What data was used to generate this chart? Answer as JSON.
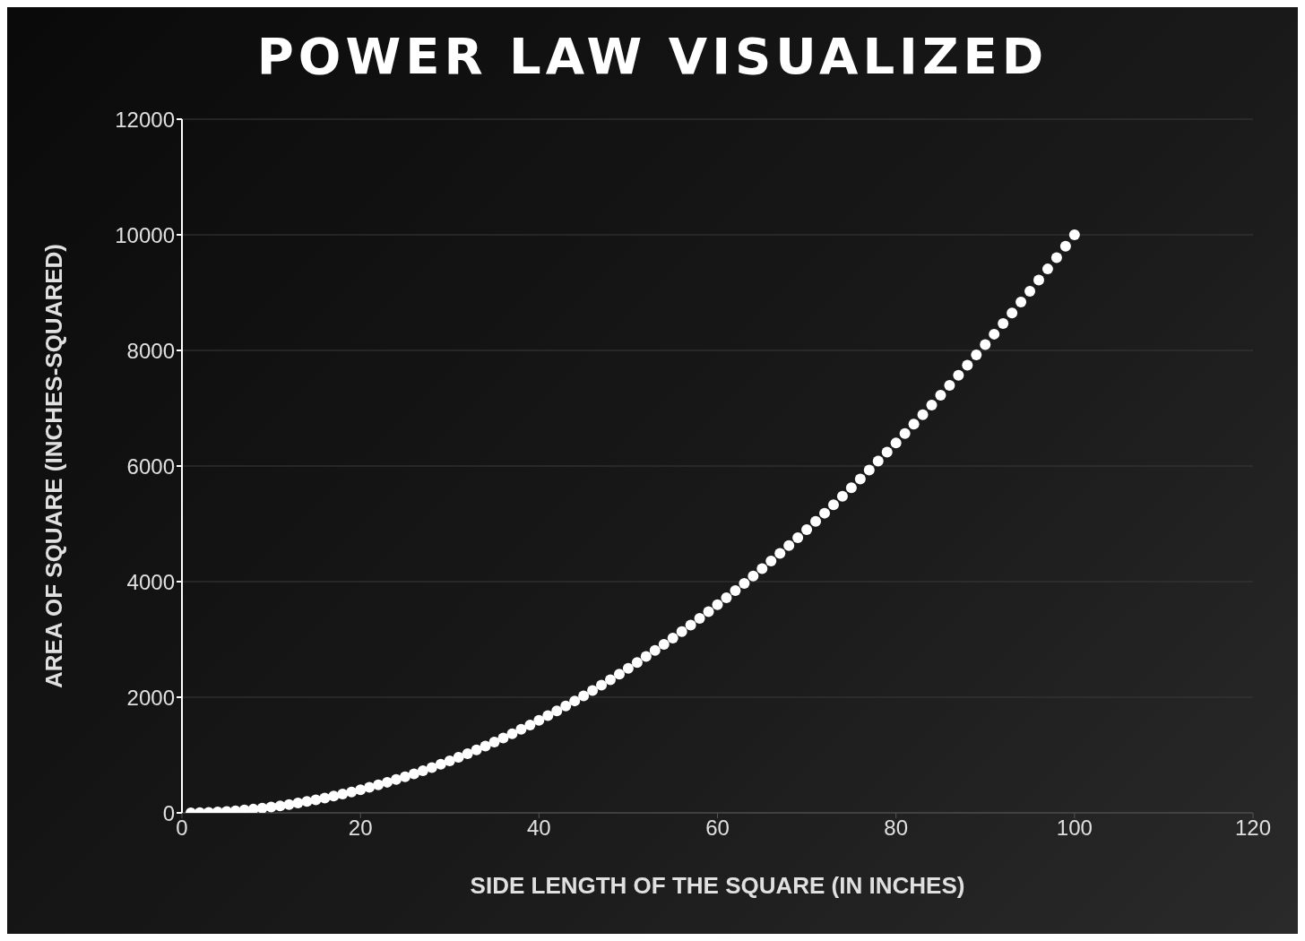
{
  "chart_data": {
    "type": "scatter",
    "title": "POWER LAW VISUALIZED",
    "xlabel": "SIDE LENGTH OF THE SQUARE (IN INCHES)",
    "ylabel": "AREA OF SQUARE (INCHES-SQUARED)",
    "x": [
      1,
      2,
      3,
      4,
      5,
      6,
      7,
      8,
      9,
      10,
      11,
      12,
      13,
      14,
      15,
      16,
      17,
      18,
      19,
      20,
      21,
      22,
      23,
      24,
      25,
      26,
      27,
      28,
      29,
      30,
      31,
      32,
      33,
      34,
      35,
      36,
      37,
      38,
      39,
      40,
      41,
      42,
      43,
      44,
      45,
      46,
      47,
      48,
      49,
      50,
      51,
      52,
      53,
      54,
      55,
      56,
      57,
      58,
      59,
      60,
      61,
      62,
      63,
      64,
      65,
      66,
      67,
      68,
      69,
      70,
      71,
      72,
      73,
      74,
      75,
      76,
      77,
      78,
      79,
      80,
      81,
      82,
      83,
      84,
      85,
      86,
      87,
      88,
      89,
      90,
      91,
      92,
      93,
      94,
      95,
      96,
      97,
      98,
      99,
      100
    ],
    "values": [
      1,
      4,
      9,
      16,
      25,
      36,
      49,
      64,
      81,
      100,
      121,
      144,
      169,
      196,
      225,
      256,
      289,
      324,
      361,
      400,
      441,
      484,
      529,
      576,
      625,
      676,
      729,
      784,
      841,
      900,
      961,
      1024,
      1089,
      1156,
      1225,
      1296,
      1369,
      1444,
      1521,
      1600,
      1681,
      1764,
      1849,
      1936,
      2025,
      2116,
      2209,
      2304,
      2401,
      2500,
      2601,
      2704,
      2809,
      2916,
      3025,
      3136,
      3249,
      3364,
      3481,
      3600,
      3721,
      3844,
      3969,
      4096,
      4225,
      4356,
      4489,
      4624,
      4761,
      4900,
      5041,
      5184,
      5329,
      5476,
      5625,
      5776,
      5929,
      6084,
      6241,
      6400,
      6561,
      6724,
      6889,
      7056,
      7225,
      7396,
      7569,
      7744,
      7921,
      8100,
      8281,
      8464,
      8649,
      8836,
      9025,
      9216,
      9409,
      9604,
      9801,
      10000
    ],
    "color": "#ffffff",
    "marker": "circle",
    "grid": "y",
    "xlim": [
      0,
      120
    ],
    "xticks": [
      0,
      20,
      40,
      60,
      80,
      100,
      120
    ],
    "ylim": [
      0,
      12000
    ],
    "yticks": [
      0,
      2000,
      4000,
      6000,
      8000,
      10000,
      12000
    ]
  }
}
